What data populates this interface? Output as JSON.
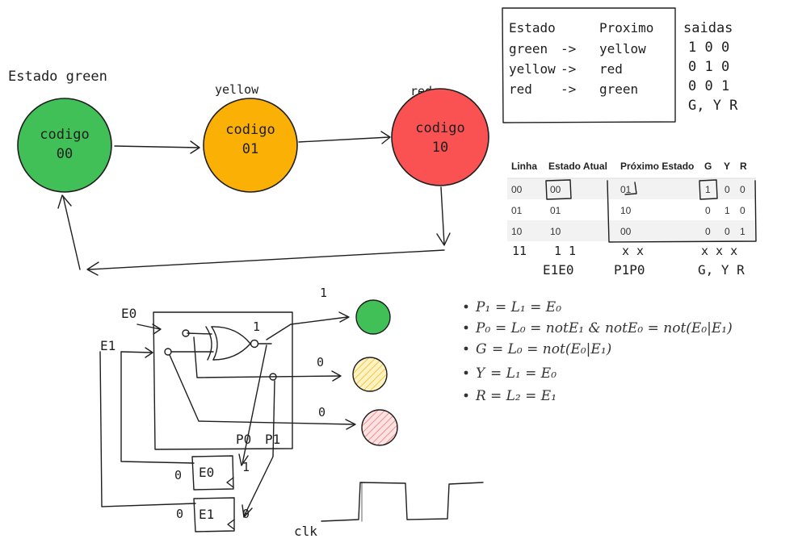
{
  "state_diagram": {
    "state_label": "Estado green",
    "states": [
      {
        "name": "green",
        "caption": "",
        "code_label": "codigo",
        "code": "00",
        "color": "#40c057"
      },
      {
        "name": "yellow",
        "caption": "yellow",
        "code_label": "codigo",
        "code": "01",
        "color": "#fab005"
      },
      {
        "name": "red",
        "caption": "red",
        "code_label": "codigo",
        "code": "10",
        "color": "#fa5252"
      }
    ]
  },
  "transition_box": {
    "header_estado": "Estado",
    "header_proximo": "Proximo",
    "rows": [
      {
        "from": "green",
        "arrow": "->",
        "to": "yellow"
      },
      {
        "from": "yellow",
        "arrow": "->",
        "to": "red"
      },
      {
        "from": "red",
        "arrow": "->",
        "to": "green"
      }
    ]
  },
  "outputs_box": {
    "header": "saidas",
    "rows": [
      "1 0 0",
      "0 1 0",
      "0 0 1"
    ],
    "footer": "G, Y R"
  },
  "truth_table": {
    "headers": [
      "Linha",
      "Estado Atual",
      "Próximo Estado",
      "G",
      "Y",
      "R"
    ],
    "rows": [
      [
        "00",
        "00",
        "01",
        "1",
        "0",
        "0"
      ],
      [
        "01",
        "01",
        "10",
        "0",
        "1",
        "0"
      ],
      [
        "10",
        "10",
        "00",
        "0",
        "0",
        "1"
      ]
    ],
    "extra_row": {
      "linha": "11",
      "atual": "1 1",
      "proximo": "x x",
      "outputs": "x x x"
    },
    "footer": {
      "atual": "E1E0",
      "proximo": "P1P0",
      "outputs": "G, Y R"
    }
  },
  "equations": [
    {
      "lhs": "P₁",
      "rhs": "= L₁ = E₀"
    },
    {
      "lhs": "P₀",
      "rhs": "= L₀ = notE₁ & notE₀ = not(E₀|E₁)"
    },
    {
      "lhs": "G",
      "rhs": "= L₀ = not(E₀|E₁)"
    },
    {
      "lhs": "Y",
      "rhs": "= L₁ = E₀"
    },
    {
      "lhs": "R",
      "rhs": "= L₂ = E₁"
    }
  ],
  "circuit": {
    "input_e0": "E0",
    "input_e1": "E1",
    "out_top_value": "1",
    "xor_out_value": "1",
    "out_mid_value": "0",
    "out_bot_value": "0",
    "p0_label": "P0",
    "p1_label": "P1",
    "ff_e0_label": "E0",
    "ff_e1_label": "E1",
    "ff_e0_in": "0",
    "ff_e1_in": "0",
    "ff_e0_out": "1",
    "ff_e1_out": "0",
    "clk_label": "clk",
    "lights": [
      {
        "name": "green",
        "color": "#40c057"
      },
      {
        "name": "yellow",
        "color": "#ffe8a3"
      },
      {
        "name": "red",
        "color": "#ffc9c9"
      }
    ]
  }
}
